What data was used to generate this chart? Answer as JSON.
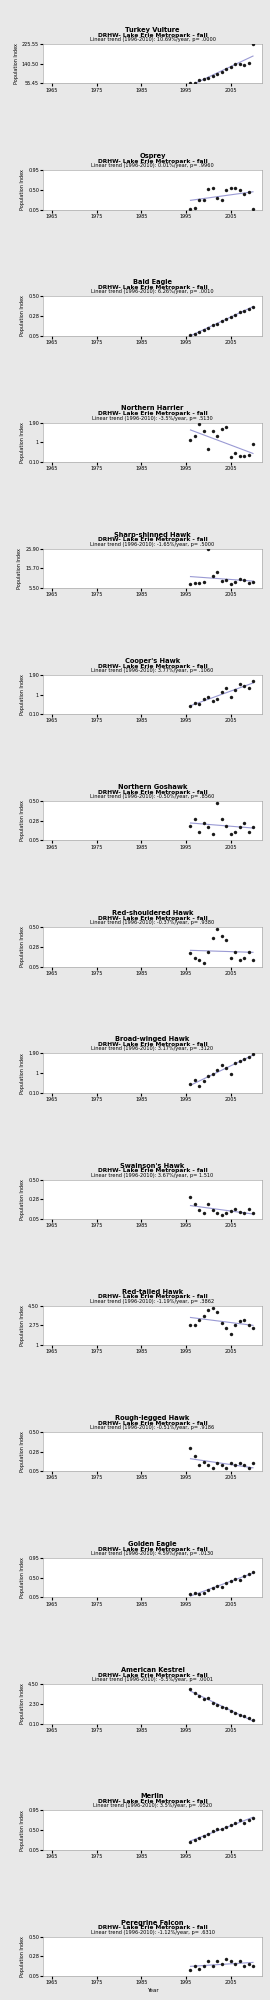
{
  "charts": [
    {
      "title": "Turkey Vulture",
      "subtitle": "DRHW- Lake Erie Metropark - fall",
      "trend_text": "Linear trend (1996-2010): 10.69%/year, p= .0000",
      "years": [
        1988,
        1989,
        1990,
        1991,
        1992,
        1993,
        1994,
        1995,
        1996,
        1997,
        1998,
        1999,
        2000,
        2001,
        2002,
        2003,
        2004,
        2005,
        2006,
        2007,
        2008,
        2009,
        2010
      ],
      "values": [
        null,
        null,
        null,
        null,
        null,
        null,
        null,
        null,
        57.0,
        57.0,
        70.0,
        75.0,
        80.0,
        88.0,
        95.0,
        105.0,
        118.0,
        125.0,
        138.0,
        140.0,
        133.0,
        143.0,
        225.55
      ],
      "ylim": [
        55.45,
        225.55
      ],
      "yticks": [
        55.45,
        140.5,
        225.55
      ],
      "has_trend": true
    },
    {
      "title": "Osprey",
      "subtitle": "DRHW- Lake Erie Metropark - fall",
      "trend_text": "Linear trend (1996-2010): 0.01%/year, p= .9960",
      "years": [
        1988,
        1989,
        1990,
        1991,
        1992,
        1993,
        1994,
        1995,
        1996,
        1997,
        1998,
        1999,
        2000,
        2001,
        2002,
        2003,
        2004,
        2005,
        2006,
        2007,
        2008,
        2009,
        2010
      ],
      "values": [
        null,
        null,
        null,
        null,
        null,
        null,
        null,
        null,
        0.07,
        0.08,
        0.28,
        0.28,
        0.52,
        0.55,
        0.32,
        0.28,
        0.5,
        0.55,
        0.55,
        0.5,
        0.4,
        0.45,
        0.06
      ],
      "ylim": [
        0.05,
        0.95
      ],
      "yticks": [
        0.05,
        0.5,
        0.95
      ],
      "has_trend": true
    },
    {
      "title": "Bald Eagle",
      "subtitle": "DRHW- Lake Erie Metropark - fall",
      "trend_text": "Linear trend (1996-2010): 6.26%/year, p= .0010",
      "years": [
        1988,
        1989,
        1990,
        1991,
        1992,
        1993,
        1994,
        1995,
        1996,
        1997,
        1998,
        1999,
        2000,
        2001,
        2002,
        2003,
        2004,
        2005,
        2006,
        2007,
        2008,
        2009,
        2010
      ],
      "values": [
        null,
        null,
        null,
        null,
        null,
        null,
        null,
        null,
        0.06,
        0.07,
        0.09,
        0.12,
        0.14,
        0.17,
        0.19,
        0.22,
        0.24,
        0.26,
        0.29,
        0.32,
        0.33,
        0.36,
        0.38
      ],
      "ylim": [
        0.05,
        0.5
      ],
      "yticks": [
        0.05,
        0.275,
        0.5
      ],
      "has_trend": true
    },
    {
      "title": "Northern Harrier",
      "subtitle": "DRHW- Lake Erie Metropark - fall",
      "trend_text": "Linear trend (1996-2010): -3.5%/year, p= .5130",
      "years": [
        1988,
        1989,
        1990,
        1991,
        1992,
        1993,
        1994,
        1995,
        1996,
        1997,
        1998,
        1999,
        2000,
        2001,
        2002,
        2003,
        2004,
        2005,
        2006,
        2007,
        2008,
        2009,
        2010
      ],
      "values": [
        null,
        null,
        null,
        null,
        null,
        null,
        null,
        null,
        1.1,
        1.3,
        1.85,
        1.5,
        0.7,
        1.5,
        1.3,
        1.6,
        1.7,
        0.32,
        0.5,
        0.35,
        0.35,
        0.4,
        0.9
      ],
      "ylim": [
        0.1,
        1.9
      ],
      "yticks": [
        0.1,
        1.0,
        1.9
      ],
      "has_trend": true
    },
    {
      "title": "Sharp-shinned Hawk",
      "subtitle": "DRHW- Lake Erie Metropark - fall",
      "trend_text": "Linear trend (1996-2010): -1.65%/year, p= .5000",
      "years": [
        1988,
        1989,
        1990,
        1991,
        1992,
        1993,
        1994,
        1995,
        1996,
        1997,
        1998,
        1999,
        2000,
        2001,
        2002,
        2003,
        2004,
        2005,
        2006,
        2007,
        2008,
        2009,
        2010
      ],
      "values": [
        null,
        null,
        null,
        null,
        null,
        null,
        null,
        null,
        7.5,
        8.2,
        8.0,
        8.5,
        25.9,
        12.0,
        14.0,
        9.0,
        9.5,
        7.5,
        8.5,
        10.0,
        9.5,
        8.0,
        8.5
      ],
      "ylim": [
        5.5,
        25.9
      ],
      "yticks": [
        5.5,
        15.7,
        25.9
      ],
      "has_trend": true
    },
    {
      "title": "Cooper's Hawk",
      "subtitle": "DRHW- Lake Erie Metropark - fall",
      "trend_text": "Linear trend (1996-2010): 3.77%/year, p= .1060",
      "years": [
        1988,
        1989,
        1990,
        1991,
        1992,
        1993,
        1994,
        1995,
        1996,
        1997,
        1998,
        1999,
        2000,
        2001,
        2002,
        2003,
        2004,
        2005,
        2006,
        2007,
        2008,
        2009,
        2010
      ],
      "values": [
        null,
        null,
        null,
        null,
        null,
        null,
        null,
        null,
        0.5,
        0.6,
        0.55,
        0.8,
        0.9,
        0.7,
        0.8,
        1.1,
        1.3,
        0.9,
        1.2,
        1.5,
        1.4,
        1.3,
        1.6
      ],
      "ylim": [
        0.1,
        1.9
      ],
      "yticks": [
        0.1,
        1.0,
        1.9
      ],
      "has_trend": true
    },
    {
      "title": "Northern Goshawk",
      "subtitle": "DRHW- Lake Erie Metropark - fall",
      "trend_text": "Linear trend (1996-2010): -0.50%/year, p= .8560",
      "years": [
        1988,
        1989,
        1990,
        1991,
        1992,
        1993,
        1994,
        1995,
        1996,
        1997,
        1998,
        1999,
        2000,
        2001,
        2002,
        2003,
        2004,
        2005,
        2006,
        2007,
        2008,
        2009,
        2010
      ],
      "values": [
        null,
        null,
        null,
        null,
        null,
        null,
        null,
        null,
        0.22,
        0.3,
        0.15,
        0.25,
        0.2,
        0.12,
        0.48,
        0.3,
        0.22,
        0.12,
        0.15,
        0.2,
        0.25,
        0.15,
        0.2
      ],
      "ylim": [
        0.05,
        0.5
      ],
      "yticks": [
        0.05,
        0.275,
        0.5
      ],
      "has_trend": true
    },
    {
      "title": "Red-shouldered Hawk",
      "subtitle": "DRHW- Lake Erie Metropark - fall",
      "trend_text": "Linear trend (1996-2010): -0.37%/year, p= .9380",
      "years": [
        1988,
        1989,
        1990,
        1991,
        1992,
        1993,
        1994,
        1995,
        1996,
        1997,
        1998,
        1999,
        2000,
        2001,
        2002,
        2003,
        2004,
        2005,
        2006,
        2007,
        2008,
        2009,
        2010
      ],
      "values": [
        null,
        null,
        null,
        null,
        null,
        null,
        null,
        null,
        0.2,
        0.15,
        0.12,
        0.09,
        0.22,
        0.38,
        0.48,
        0.4,
        0.35,
        0.15,
        0.22,
        0.12,
        0.15,
        0.22,
        0.12
      ],
      "ylim": [
        0.05,
        0.5
      ],
      "yticks": [
        0.05,
        0.275,
        0.5
      ],
      "has_trend": true
    },
    {
      "title": "Broad-winged Hawk",
      "subtitle": "DRHW- Lake Erie Metropark - fall",
      "trend_text": "Linear trend (1996-2010): 3.17%/year, p= .3120",
      "years": [
        1988,
        1989,
        1990,
        1991,
        1992,
        1993,
        1994,
        1995,
        1996,
        1997,
        1998,
        1999,
        2000,
        2001,
        2002,
        2003,
        2004,
        2005,
        2006,
        2007,
        2008,
        2009,
        2010
      ],
      "values": [
        null,
        null,
        null,
        null,
        null,
        null,
        null,
        null,
        0.5,
        0.7,
        0.4,
        0.65,
        0.85,
        0.95,
        1.15,
        1.35,
        1.25,
        0.95,
        1.45,
        1.55,
        1.65,
        1.75,
        1.85
      ],
      "ylim": [
        0.1,
        1.9
      ],
      "yticks": [
        0.1,
        1.0,
        1.9
      ],
      "has_trend": true
    },
    {
      "title": "Swainson's Hawk",
      "subtitle": "DRHW- Lake Erie Metropark - fall",
      "trend_text": "Linear trend (1996-2010): 3.67%/year, p= 1.510",
      "years": [
        1988,
        1989,
        1990,
        1991,
        1992,
        1993,
        1994,
        1995,
        1996,
        1997,
        1998,
        1999,
        2000,
        2001,
        2002,
        2003,
        2004,
        2005,
        2006,
        2007,
        2008,
        2009,
        2010
      ],
      "values": [
        null,
        null,
        null,
        null,
        null,
        null,
        null,
        null,
        0.3,
        0.22,
        0.15,
        0.12,
        0.22,
        0.15,
        0.12,
        0.09,
        0.12,
        0.14,
        0.16,
        0.13,
        0.12,
        0.16,
        0.12
      ],
      "ylim": [
        0.05,
        0.5
      ],
      "yticks": [
        0.05,
        0.275,
        0.5
      ],
      "has_trend": true
    },
    {
      "title": "Red-tailed Hawk",
      "subtitle": "DRHW- Lake Erie Metropark - fall",
      "trend_text": "Linear trend (1996-2010): -1.19%/year, p= .3862",
      "years": [
        1988,
        1989,
        1990,
        1991,
        1992,
        1993,
        1994,
        1995,
        1996,
        1997,
        1998,
        1999,
        2000,
        2001,
        2002,
        2003,
        2004,
        2005,
        2006,
        2007,
        2008,
        2009,
        2010
      ],
      "values": [
        null,
        null,
        null,
        null,
        null,
        null,
        null,
        null,
        2.8,
        2.8,
        3.2,
        3.6,
        4.1,
        4.3,
        3.9,
        3.0,
        2.5,
        2.0,
        2.8,
        3.1,
        3.2,
        2.8,
        2.5
      ],
      "ylim": [
        1.0,
        4.5
      ],
      "yticks": [
        1.0,
        2.75,
        4.5
      ],
      "has_trend": true
    },
    {
      "title": "Rough-legged Hawk",
      "subtitle": "DRHW- Lake Erie Metropark - fall",
      "trend_text": "Linear trend (1996-2010): -0.51%/year, p= .9186",
      "years": [
        1988,
        1989,
        1990,
        1991,
        1992,
        1993,
        1994,
        1995,
        1996,
        1997,
        1998,
        1999,
        2000,
        2001,
        2002,
        2003,
        2004,
        2005,
        2006,
        2007,
        2008,
        2009,
        2010
      ],
      "values": [
        null,
        null,
        null,
        null,
        null,
        null,
        null,
        null,
        0.32,
        0.22,
        0.12,
        0.16,
        0.12,
        0.09,
        0.14,
        0.12,
        0.09,
        0.14,
        0.12,
        0.14,
        0.12,
        0.09,
        0.14
      ],
      "ylim": [
        0.05,
        0.5
      ],
      "yticks": [
        0.05,
        0.275,
        0.5
      ],
      "has_trend": true
    },
    {
      "title": "Golden Eagle",
      "subtitle": "DRHW- Lake Erie Metropark - fall",
      "trend_text": "Linear trend (1996-2010): 4.59%/year, p= .0130",
      "years": [
        1988,
        1989,
        1990,
        1991,
        1992,
        1993,
        1994,
        1995,
        1996,
        1997,
        1998,
        1999,
        2000,
        2001,
        2002,
        2003,
        2004,
        2005,
        2006,
        2007,
        2008,
        2009,
        2010
      ],
      "values": [
        null,
        null,
        null,
        null,
        null,
        null,
        null,
        null,
        0.12,
        0.16,
        0.13,
        0.16,
        0.22,
        0.27,
        0.32,
        0.3,
        0.38,
        0.43,
        0.48,
        0.45,
        0.53,
        0.58,
        0.64
      ],
      "ylim": [
        0.05,
        0.95
      ],
      "yticks": [
        0.05,
        0.5,
        0.95
      ],
      "has_trend": true
    },
    {
      "title": "American Kestrel",
      "subtitle": "DRHW- Lake Erie Metropark - fall",
      "trend_text": "Linear trend (1996-2010): -5.5%/year, p= .0001",
      "years": [
        1988,
        1989,
        1990,
        1991,
        1992,
        1993,
        1994,
        1995,
        1996,
        1997,
        1998,
        1999,
        2000,
        2001,
        2002,
        2003,
        2004,
        2005,
        2006,
        2007,
        2008,
        2009,
        2010
      ],
      "values": [
        null,
        null,
        null,
        null,
        null,
        null,
        null,
        null,
        4.0,
        3.5,
        3.2,
        2.8,
        3.0,
        2.4,
        2.2,
        2.0,
        1.8,
        1.5,
        1.3,
        1.1,
        0.9,
        0.7,
        0.5
      ],
      "ylim": [
        0.1,
        4.5
      ],
      "yticks": [
        0.1,
        2.3,
        4.5
      ],
      "has_trend": true
    },
    {
      "title": "Merlin",
      "subtitle": "DRHW- Lake Erie Metropark - fall",
      "trend_text": "Linear trend (1996-2010): 3.5%/year, p= .0520",
      "years": [
        1988,
        1989,
        1990,
        1991,
        1992,
        1993,
        1994,
        1995,
        1996,
        1997,
        1998,
        1999,
        2000,
        2001,
        2002,
        2003,
        2004,
        2005,
        2006,
        2007,
        2008,
        2009,
        2010
      ],
      "values": [
        null,
        null,
        null,
        null,
        null,
        null,
        null,
        null,
        0.22,
        0.27,
        0.32,
        0.37,
        0.42,
        0.47,
        0.52,
        0.52,
        0.57,
        0.62,
        0.67,
        0.72,
        0.67,
        0.72,
        0.77
      ],
      "ylim": [
        0.05,
        0.95
      ],
      "yticks": [
        0.05,
        0.5,
        0.95
      ],
      "has_trend": true
    },
    {
      "title": "Peregrine Falcon",
      "subtitle": "DRHW- Lake Erie Metropark - fall",
      "trend_text": "Linear trend (1996-2010): -1.12%/year, p= .6310",
      "years": [
        1988,
        1989,
        1990,
        1991,
        1992,
        1993,
        1994,
        1995,
        1996,
        1997,
        1998,
        1999,
        2000,
        2001,
        2002,
        2003,
        2004,
        2005,
        2006,
        2007,
        2008,
        2009,
        2010
      ],
      "values": [
        null,
        null,
        null,
        null,
        null,
        null,
        null,
        null,
        0.12,
        0.16,
        0.13,
        0.16,
        0.22,
        0.16,
        0.22,
        0.19,
        0.24,
        0.22,
        0.19,
        0.22,
        0.16,
        0.19,
        0.16
      ],
      "ylim": [
        0.05,
        0.5
      ],
      "yticks": [
        0.05,
        0.275,
        0.5
      ],
      "has_trend": true
    }
  ],
  "xlim": [
    1963,
    2012
  ],
  "xticks": [
    1965,
    1975,
    1985,
    1995,
    2005
  ],
  "xlabel": "Year",
  "ylabel": "Population Index",
  "plot_bg": "#ffffff",
  "fig_bg": "#e8e8e8",
  "dot_color": "#1a1a1a",
  "line_color": "#8888cc",
  "dot_size": 6
}
